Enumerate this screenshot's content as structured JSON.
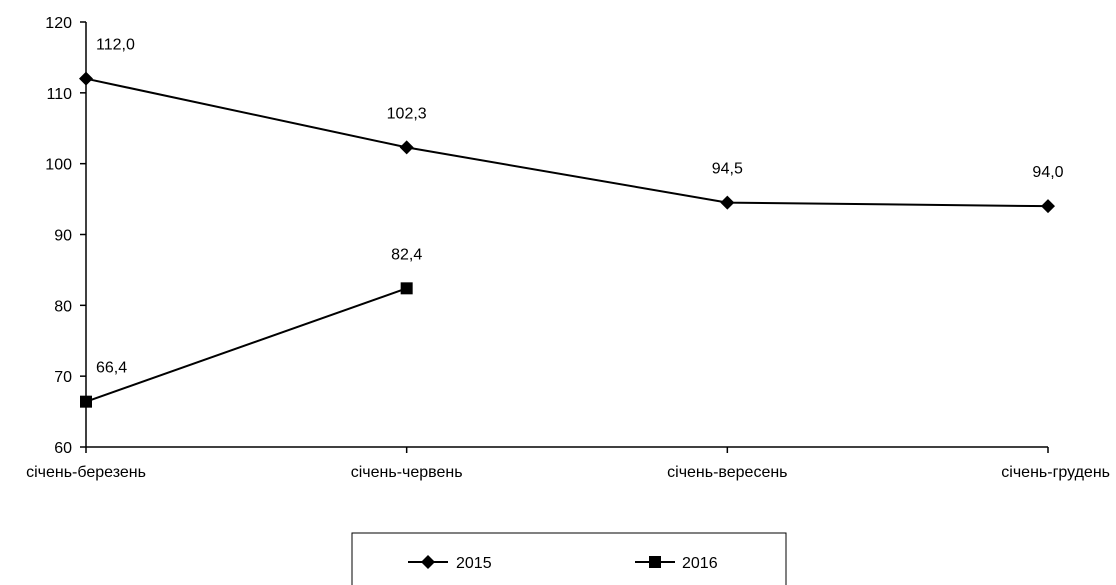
{
  "chart_data": {
    "type": "line",
    "categories": [
      "січень-березень",
      "січень-червень",
      "січень-вересень",
      "січень-грудень"
    ],
    "series": [
      {
        "name": "2015",
        "values": [
          112.0,
          102.3,
          94.5,
          94.0
        ],
        "labels": [
          "112,0",
          "102,3",
          "94,5",
          "94,0"
        ],
        "marker": "diamond"
      },
      {
        "name": "2016",
        "values": [
          66.4,
          82.4,
          null,
          null
        ],
        "labels": [
          "66,4",
          "82,4",
          "",
          ""
        ],
        "marker": "square"
      }
    ],
    "yticks": [
      60,
      70,
      80,
      90,
      100,
      110,
      120
    ],
    "ylim": [
      60,
      120
    ],
    "grid": false,
    "legend": "bottom-center",
    "colors": {
      "line": "#000000",
      "background": "#ffffff"
    }
  }
}
